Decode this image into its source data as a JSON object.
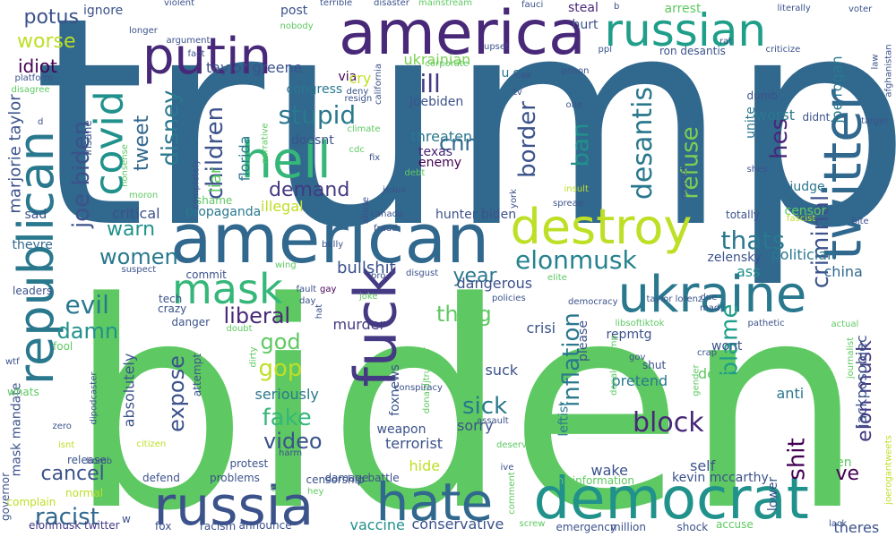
{
  "words": [
    {
      "text": "trump",
      "color": "#31688e"
    },
    {
      "text": "biden",
      "color": "#5ec962"
    },
    {
      "text": "american",
      "color": "#31688e"
    },
    {
      "text": "america",
      "color": "#482878"
    },
    {
      "text": "russian",
      "color": "#1f9e89"
    },
    {
      "text": "republican",
      "color": "#2a788e"
    },
    {
      "text": "twitter",
      "color": "#31688e"
    },
    {
      "text": "ukraine",
      "color": "#2a788e"
    },
    {
      "text": "democrat",
      "color": "#21918c"
    },
    {
      "text": "russia",
      "color": "#3b528b"
    },
    {
      "text": "hate",
      "color": "#31688e"
    },
    {
      "text": "fuck",
      "color": "#443983"
    },
    {
      "text": "destroy",
      "color": "#bddf26"
    },
    {
      "text": "hell",
      "color": "#35b779"
    },
    {
      "text": "putin",
      "color": "#482878"
    },
    {
      "text": "mask",
      "color": "#35b779"
    },
    {
      "text": "covid",
      "color": "#21918c"
    },
    {
      "text": "elonmusk",
      "color": "#26828e"
    },
    {
      "text": "thats",
      "color": "#2a788e"
    },
    {
      "text": "stupid",
      "color": "#2a788e"
    },
    {
      "text": "liberal",
      "color": "#482878"
    },
    {
      "text": "block",
      "color": "#482878"
    },
    {
      "text": "women",
      "color": "#2a788e"
    },
    {
      "text": "children",
      "color": "#3b528b"
    },
    {
      "text": "disney",
      "color": "#2a788e"
    },
    {
      "text": "worse",
      "color": "#bddf26"
    },
    {
      "text": "potus",
      "color": "#3b528b"
    },
    {
      "text": "idiot",
      "color": "#440154"
    },
    {
      "text": "desantis",
      "color": "#2a788e"
    },
    {
      "text": "refuse",
      "color": "#7ad151"
    },
    {
      "text": "border",
      "color": "#3b528b"
    },
    {
      "text": "hes",
      "color": "#482878"
    },
    {
      "text": "evil",
      "color": "#2a788e"
    },
    {
      "text": "demand",
      "color": "#443983"
    },
    {
      "text": "ban",
      "color": "#21918c"
    },
    {
      "text": "cnn",
      "color": "#31688e"
    },
    {
      "text": "ill",
      "color": "#443983"
    },
    {
      "text": "inflation",
      "color": "#2a788e"
    },
    {
      "text": "thing",
      "color": "#5ec962"
    },
    {
      "text": "god",
      "color": "#5ec962"
    },
    {
      "text": "gop",
      "color": "#bddf26"
    },
    {
      "text": "fake",
      "color": "#35b779"
    },
    {
      "text": "video",
      "color": "#3b528b"
    },
    {
      "text": "sick",
      "color": "#2a788e"
    },
    {
      "text": "criminal",
      "color": "#3b528b"
    },
    {
      "text": "shit",
      "color": "#440154"
    },
    {
      "text": "blame",
      "color": "#1f9e89"
    },
    {
      "text": "elon musk",
      "color": "#443983"
    },
    {
      "text": "racist",
      "color": "#31688e"
    },
    {
      "text": "cancel",
      "color": "#3b528b"
    },
    {
      "text": "damn",
      "color": "#21918c"
    },
    {
      "text": "warn",
      "color": "#21918c"
    },
    {
      "text": "tweet",
      "color": "#31688e"
    },
    {
      "text": "joe biden",
      "color": "#3b528b"
    },
    {
      "text": "expose",
      "color": "#3b528b"
    },
    {
      "text": "year",
      "color": "#2a788e"
    },
    {
      "text": "ve",
      "color": "#440154"
    },
    {
      "text": "jackposobiec",
      "color": "#3b528b"
    },
    {
      "text": "joe rogan",
      "color": "#2a788e"
    },
    {
      "text": "ignore",
      "color": "#3b528b"
    },
    {
      "text": "post",
      "color": "#3b528b"
    },
    {
      "text": "arrest",
      "color": "#5ec962"
    },
    {
      "text": "steal",
      "color": "#482878"
    },
    {
      "text": "hurt",
      "color": "#3b528b"
    },
    {
      "text": "taylor greene",
      "color": "#3b528b"
    },
    {
      "text": "via",
      "color": "#440154"
    },
    {
      "text": "ukrainian",
      "color": "#7ad151"
    },
    {
      "text": "u s",
      "color": "#2a788e"
    },
    {
      "text": "marjorie taylor",
      "color": "#3b528b"
    },
    {
      "text": "sad",
      "color": "#3b528b"
    },
    {
      "text": "theyre",
      "color": "#31688e"
    },
    {
      "text": "leaders",
      "color": "#3b528b"
    },
    {
      "text": "mask mandate",
      "color": "#3b528b"
    },
    {
      "text": "governor",
      "color": "#3b528b"
    },
    {
      "text": "elonmusk twitter",
      "color": "#443983"
    },
    {
      "text": "congress",
      "color": "#2a788e"
    },
    {
      "text": "cry",
      "color": "#bddf26"
    },
    {
      "text": "joebiden",
      "color": "#3b528b"
    },
    {
      "text": "threaten",
      "color": "#2a788e"
    },
    {
      "text": "doesnt",
      "color": "#3b528b"
    },
    {
      "text": "liar",
      "color": "#5ec962"
    },
    {
      "text": "florida",
      "color": "#2a788e"
    },
    {
      "text": "texas",
      "color": "#482878"
    },
    {
      "text": "enemy",
      "color": "#440154"
    },
    {
      "text": "critical",
      "color": "#3b528b"
    },
    {
      "text": "propaganda",
      "color": "#2a788e"
    },
    {
      "text": "illegal",
      "color": "#bddf26"
    },
    {
      "text": "hunter biden",
      "color": "#3b528b"
    },
    {
      "text": "judge",
      "color": "#2a788e"
    },
    {
      "text": "worst",
      "color": "#2a788e"
    },
    {
      "text": "unite",
      "color": "#2a788e"
    },
    {
      "text": "dumb",
      "color": "#3b528b"
    },
    {
      "text": "didnt",
      "color": "#3b528b"
    },
    {
      "text": "censor",
      "color": "#5ec962"
    },
    {
      "text": "totally",
      "color": "#3b528b"
    },
    {
      "text": "politician",
      "color": "#2a788e"
    },
    {
      "text": "ass",
      "color": "#21918c"
    },
    {
      "text": "china",
      "color": "#31688e"
    },
    {
      "text": "zelensky",
      "color": "#3b528b"
    },
    {
      "text": "bullshit",
      "color": "#3b528b"
    },
    {
      "text": "dangerous",
      "color": "#3b528b"
    },
    {
      "text": "crisi",
      "color": "#3b528b"
    },
    {
      "text": "murder",
      "color": "#443983"
    },
    {
      "text": "please",
      "color": "#3b528b"
    },
    {
      "text": "repmtg",
      "color": "#3b528b"
    },
    {
      "text": "wont",
      "color": "#3b528b"
    },
    {
      "text": "dem",
      "color": "#5ec962"
    },
    {
      "text": "seriously",
      "color": "#2a788e"
    },
    {
      "text": "anti",
      "color": "#2a788e"
    },
    {
      "text": "pretend",
      "color": "#2a788e"
    },
    {
      "text": "suck",
      "color": "#3b528b"
    },
    {
      "text": "sorry",
      "color": "#3b528b"
    },
    {
      "text": "weapon",
      "color": "#3b528b"
    },
    {
      "text": "terrorist",
      "color": "#3b528b"
    },
    {
      "text": "foxnews",
      "color": "#3b528b"
    },
    {
      "text": "absolutely",
      "color": "#3b528b"
    },
    {
      "text": "wake",
      "color": "#3b528b"
    },
    {
      "text": "self",
      "color": "#3b528b"
    },
    {
      "text": "hide",
      "color": "#bddf26"
    },
    {
      "text": "men",
      "color": "#5ec962"
    },
    {
      "text": "kevin mccarthy",
      "color": "#3b528b"
    },
    {
      "text": "vaccine",
      "color": "#21918c"
    },
    {
      "text": "conservative",
      "color": "#3b528b"
    },
    {
      "text": "censorship",
      "color": "#3b528b"
    },
    {
      "text": "theres",
      "color": "#3b528b"
    },
    {
      "text": "leftist",
      "color": "#2a788e"
    },
    {
      "text": "shut",
      "color": "#3b528b"
    },
    {
      "text": "fox",
      "color": "#3b528b"
    },
    {
      "text": "racism",
      "color": "#3b528b"
    },
    {
      "text": "announce",
      "color": "#3b528b"
    },
    {
      "text": "million",
      "color": "#3b528b"
    },
    {
      "text": "shock",
      "color": "#3b528b"
    },
    {
      "text": "accuse",
      "color": "#5ec962"
    },
    {
      "text": "lower",
      "color": "#3b528b"
    },
    {
      "text": "misinformation",
      "color": "#5ec962"
    },
    {
      "text": "emergency",
      "color": "#3b528b"
    },
    {
      "text": "screw",
      "color": "#5ec962"
    },
    {
      "text": "problems",
      "color": "#3b528b"
    },
    {
      "text": "defend",
      "color": "#3b528b"
    },
    {
      "text": "protest",
      "color": "#3b528b"
    },
    {
      "text": "damage",
      "color": "#3b528b"
    },
    {
      "text": "battle",
      "color": "#3b528b"
    },
    {
      "text": "traitor",
      "color": "#5ec962"
    },
    {
      "text": "release",
      "color": "#3b528b"
    },
    {
      "text": "normal",
      "color": "#bddf26"
    },
    {
      "text": "complain",
      "color": "#bddf26"
    },
    {
      "text": "zero",
      "color": "#3b528b"
    },
    {
      "text": "whats",
      "color": "#5ec962"
    },
    {
      "text": "wtf",
      "color": "#3b528b"
    },
    {
      "text": "fool",
      "color": "#5ec962"
    },
    {
      "text": "isnt",
      "color": "#bddf26"
    },
    {
      "text": "dipodcaster",
      "color": "#3b528b"
    },
    {
      "text": "danger",
      "color": "#3b528b"
    },
    {
      "text": "attempt",
      "color": "#3b528b"
    },
    {
      "text": "crazy",
      "color": "#3b528b"
    },
    {
      "text": "tech",
      "color": "#3b528b"
    },
    {
      "text": "commit",
      "color": "#3b528b"
    },
    {
      "text": "suspect",
      "color": "#3b528b"
    },
    {
      "text": "doubt",
      "color": "#5ec962"
    },
    {
      "text": "dirty",
      "color": "#5ec962"
    },
    {
      "text": "citizen",
      "color": "#bddf26"
    },
    {
      "text": "shame",
      "color": "#5ec962"
    },
    {
      "text": "completely",
      "color": "#3b528b"
    },
    {
      "text": "moron",
      "color": "#5ec962"
    },
    {
      "text": "nonsense",
      "color": "#5ec962"
    },
    {
      "text": "bomb",
      "color": "#3b528b"
    },
    {
      "text": "insane",
      "color": "#3b528b"
    },
    {
      "text": "platform",
      "color": "#3b528b"
    },
    {
      "text": "disagree",
      "color": "#5ec962"
    },
    {
      "text": "longer",
      "color": "#3b528b"
    },
    {
      "text": "argument",
      "color": "#3b528b"
    },
    {
      "text": "violent",
      "color": "#3b528b"
    },
    {
      "text": "fact",
      "color": "#3b528b"
    },
    {
      "text": "nobody",
      "color": "#5ec962"
    },
    {
      "text": "terrible",
      "color": "#3b528b"
    },
    {
      "text": "disaster",
      "color": "#3b528b"
    },
    {
      "text": "mainstream",
      "color": "#5ec962"
    },
    {
      "text": "fauci",
      "color": "#3b528b"
    },
    {
      "text": "upset",
      "color": "#3b528b"
    },
    {
      "text": "deny",
      "color": "#3b528b"
    },
    {
      "text": "corporate",
      "color": "#5ec962"
    },
    {
      "text": "resign",
      "color": "#3b528b"
    },
    {
      "text": "california",
      "color": "#3b528b"
    },
    {
      "text": "climate",
      "color": "#5ec962"
    },
    {
      "text": "cdc",
      "color": "#5ec962"
    },
    {
      "text": "narrative",
      "color": "#5ec962"
    },
    {
      "text": "fix",
      "color": "#3b528b"
    },
    {
      "text": "debt",
      "color": "#5ec962"
    },
    {
      "text": "jesus",
      "color": "#3b528b"
    },
    {
      "text": "prison",
      "color": "#3b528b"
    },
    {
      "text": "ppl",
      "color": "#3b528b"
    },
    {
      "text": "leak",
      "color": "#3b528b"
    },
    {
      "text": "tv",
      "color": "#3b528b"
    },
    {
      "text": "one",
      "color": "#3b528b"
    },
    {
      "text": "insult",
      "color": "#bddf26"
    },
    {
      "text": "corrupt",
      "color": "#3b528b"
    },
    {
      "text": "spread",
      "color": "#3b528b"
    },
    {
      "text": "york",
      "color": "#3b528b"
    },
    {
      "text": "b",
      "color": "#3b528b"
    },
    {
      "text": "literally",
      "color": "#3b528b"
    },
    {
      "text": "voter",
      "color": "#3b528b"
    },
    {
      "text": "law",
      "color": "#3b528b"
    },
    {
      "text": "rat",
      "color": "#3b528b"
    },
    {
      "text": "ron desantis",
      "color": "#3b528b"
    },
    {
      "text": "criticize",
      "color": "#3b528b"
    },
    {
      "text": "afghanistan",
      "color": "#3b528b"
    },
    {
      "text": "target",
      "color": "#3b528b"
    },
    {
      "text": "bite",
      "color": "#3b528b"
    },
    {
      "text": "fascist",
      "color": "#bddf26"
    },
    {
      "text": "shes",
      "color": "#3b528b"
    },
    {
      "text": "abuse",
      "color": "#3b528b"
    },
    {
      "text": "canada",
      "color": "#3b528b"
    },
    {
      "text": "fraud",
      "color": "#3b528b"
    },
    {
      "text": "bully",
      "color": "#3b528b"
    },
    {
      "text": "disgust",
      "color": "#3b528b"
    },
    {
      "text": "wing",
      "color": "#5ec962"
    },
    {
      "text": "fault",
      "color": "#3b528b"
    },
    {
      "text": "pro",
      "color": "#3b528b"
    },
    {
      "text": "gay",
      "color": "#440154"
    },
    {
      "text": "day",
      "color": "#3b528b"
    },
    {
      "text": "hat",
      "color": "#3b528b"
    },
    {
      "text": "joke",
      "color": "#5ec962"
    },
    {
      "text": "policies",
      "color": "#3b528b"
    },
    {
      "text": "elite",
      "color": "#5ec962"
    },
    {
      "text": "democracy",
      "color": "#3b528b"
    },
    {
      "text": "taylor lorenz",
      "color": "#3b528b"
    },
    {
      "text": "due",
      "color": "#3b528b"
    },
    {
      "text": "mad",
      "color": "#3b528b"
    },
    {
      "text": "libsoftiktok",
      "color": "#5ec962"
    },
    {
      "text": "pathetic",
      "color": "#3b528b"
    },
    {
      "text": "actual",
      "color": "#5ec962"
    },
    {
      "text": "gov",
      "color": "#3b528b"
    },
    {
      "text": "crap",
      "color": "#3b528b"
    },
    {
      "text": "journalist",
      "color": "#5ec962"
    },
    {
      "text": "gender",
      "color": "#5ec962"
    },
    {
      "text": "donald trump",
      "color": "#5ec962"
    },
    {
      "text": "donaldjtrumpjr",
      "color": "#5ec962"
    },
    {
      "text": "conspiracy",
      "color": "#3b528b"
    },
    {
      "text": "assault",
      "color": "#3b528b"
    },
    {
      "text": "deserve",
      "color": "#5ec962"
    },
    {
      "text": "harm",
      "color": "#3b528b"
    },
    {
      "text": "crime",
      "color": "#5ec962"
    },
    {
      "text": "hey",
      "color": "#5ec962"
    },
    {
      "text": "f",
      "color": "#3b528b"
    },
    {
      "text": "ive",
      "color": "#3b528b"
    },
    {
      "text": "comment",
      "color": "#5ec962"
    },
    {
      "text": "lack",
      "color": "#3b528b"
    },
    {
      "text": "joerogantweets",
      "color": "#bddf26"
    },
    {
      "text": "w",
      "color": "#3b528b"
    },
    {
      "text": "d",
      "color": "#3b528b"
    }
  ]
}
